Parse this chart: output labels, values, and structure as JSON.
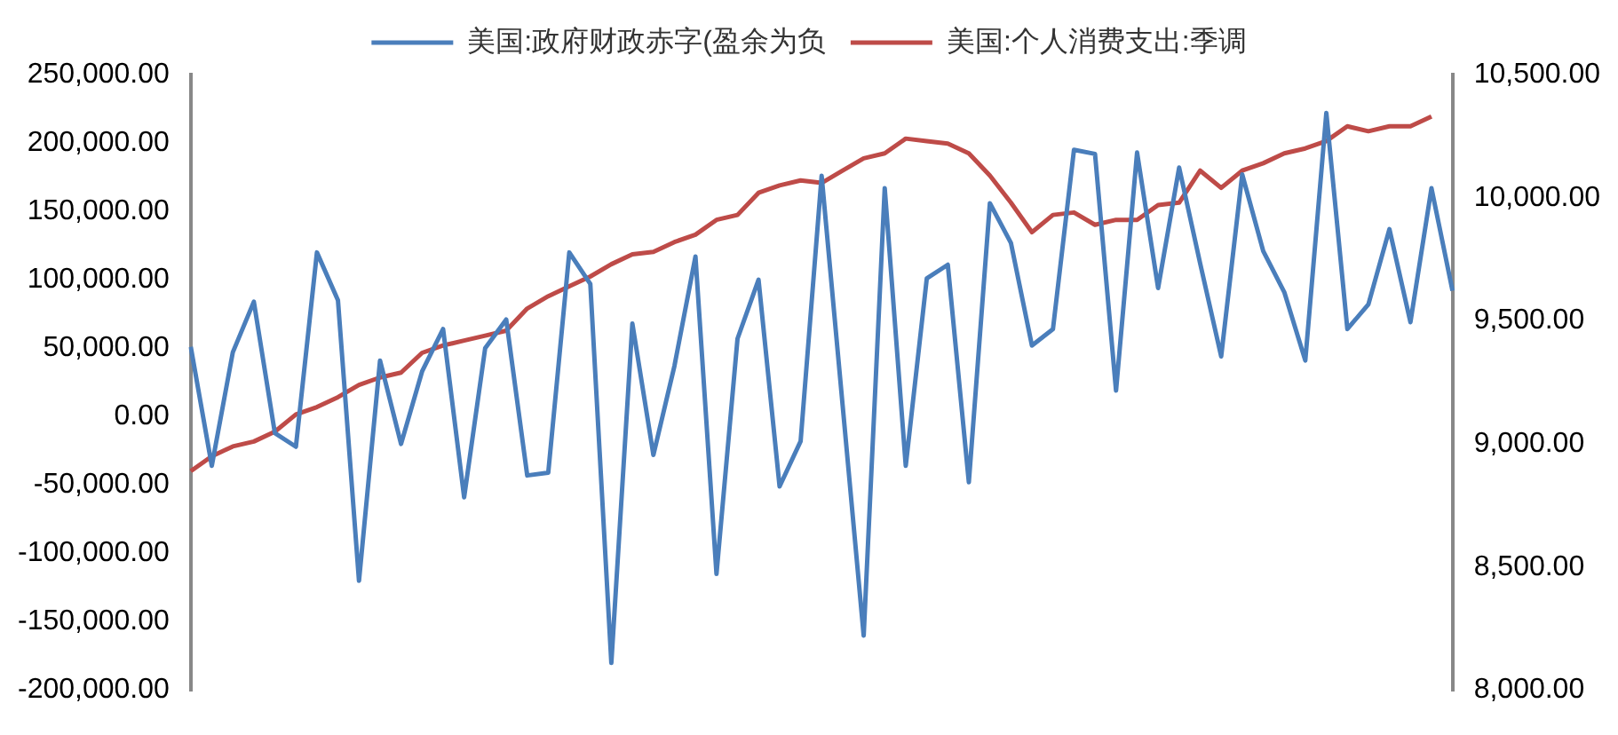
{
  "chart_data": {
    "type": "line",
    "categories": [
      null,
      null,
      null,
      null,
      null,
      null,
      null,
      null,
      null,
      null,
      null,
      null,
      null,
      null,
      null,
      null,
      null,
      null,
      null,
      null,
      null,
      null,
      null,
      null,
      null,
      null,
      null,
      null,
      null,
      null,
      null,
      null,
      null,
      null,
      null,
      null,
      null,
      null,
      null,
      null,
      null,
      null,
      null,
      null,
      null,
      null,
      null,
      null,
      null,
      null,
      null,
      null,
      null,
      null,
      null,
      null,
      null,
      null,
      null,
      null,
      null
    ],
    "series": [
      {
        "name": "美国:政府财政赤字(盈余为负",
        "color": "#4a7ebb",
        "values": [
          51000,
          -36000,
          47000,
          84000,
          -12000,
          -22000,
          120000,
          85000,
          -120000,
          41000,
          -20000,
          33000,
          64000,
          -59000,
          50000,
          71000,
          -43000,
          -41000,
          120000,
          97000,
          -180000,
          68000,
          -28000,
          37000,
          117000,
          -115000,
          57000,
          100000,
          -51000,
          -18000,
          176000,
          8000,
          -160000,
          167000,
          -36000,
          101000,
          111000,
          -48000,
          156000,
          127000,
          52000,
          64000,
          195000,
          192000,
          19000,
          193000,
          94000,
          182000,
          112000,
          44000,
          177000,
          121000,
          91000,
          41000,
          222000,
          64000,
          82000,
          137000,
          69000,
          167000,
          92000
        ]
      },
      {
        "name": "美国:个人消费支出:季调",
        "color": "#be4b48",
        "axis": "y2",
        "values": [
          8890,
          8950,
          8990,
          9010,
          9050,
          9120,
          9150,
          9190,
          9240,
          9270,
          9290,
          9370,
          9400,
          9420,
          9440,
          9460,
          9550,
          9600,
          9640,
          9680,
          9730,
          9770,
          9780,
          9820,
          9850,
          9910,
          9930,
          10020,
          10050,
          10070,
          10060,
          10110,
          10160,
          10180,
          10240,
          10230,
          10220,
          10180,
          10090,
          9980,
          9860,
          9930,
          9940,
          9890,
          9910,
          9910,
          9970,
          9980,
          10110,
          10040,
          10110,
          10140,
          10180,
          10200,
          10230,
          10290,
          10270,
          10290,
          10290,
          10330,
          null
        ]
      }
    ],
    "ylim": [
      -200000,
      250000
    ],
    "yticks": [
      {
        "value": -200000,
        "label": "-200,000.00"
      },
      {
        "value": -150000,
        "label": "-150,000.00"
      },
      {
        "value": -100000,
        "label": "-100,000.00"
      },
      {
        "value": -50000,
        "label": "-50,000.00"
      },
      {
        "value": 0,
        "label": "0.00"
      },
      {
        "value": 50000,
        "label": "50,000.00"
      },
      {
        "value": 100000,
        "label": "100,000.00"
      },
      {
        "value": 150000,
        "label": "150,000.00"
      },
      {
        "value": 200000,
        "label": "200,000.00"
      },
      {
        "value": 250000,
        "label": "250,000.00"
      }
    ],
    "y2lim": [
      8000,
      10500
    ],
    "y2ticks": [
      {
        "value": 8000,
        "label": "8,000.00"
      },
      {
        "value": 8500,
        "label": "8,500.00"
      },
      {
        "value": 9000,
        "label": "9,000.00"
      },
      {
        "value": 9500,
        "label": "9,500.00"
      },
      {
        "value": 10000,
        "label": "10,000.00"
      },
      {
        "value": 10500,
        "label": "10,500.00"
      }
    ],
    "grid": false,
    "legend": "top",
    "marker": "none",
    "line_style": "solid"
  }
}
